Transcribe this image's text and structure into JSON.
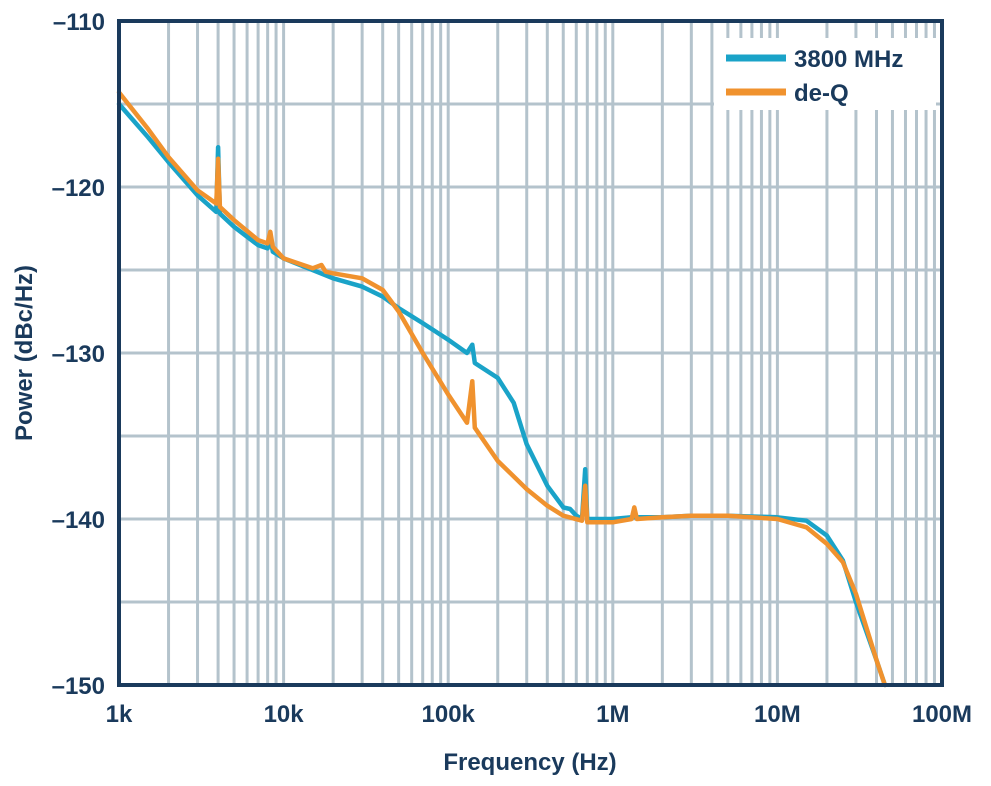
{
  "chart_data": {
    "type": "line",
    "title": "",
    "xlabel": "Frequency (Hz)",
    "ylabel": "Power (dBc/Hz)",
    "x_scale": "log",
    "xlim": [
      1000,
      100000000
    ],
    "ylim": [
      -150,
      -110
    ],
    "x_ticks": [
      {
        "value": 1000,
        "label": "1k"
      },
      {
        "value": 10000,
        "label": "10k"
      },
      {
        "value": 100000,
        "label": "100k"
      },
      {
        "value": 1000000,
        "label": "1M"
      },
      {
        "value": 10000000,
        "label": "10M"
      },
      {
        "value": 100000000,
        "label": "100M"
      }
    ],
    "y_ticks": [
      {
        "value": -110,
        "label": "–110"
      },
      {
        "value": -120,
        "label": "–120"
      },
      {
        "value": -130,
        "label": "–130"
      },
      {
        "value": -140,
        "label": "–140"
      },
      {
        "value": -150,
        "label": "–150"
      }
    ],
    "grid": true,
    "legend_position": "top-right",
    "series": [
      {
        "name": "3800 MHz",
        "color": "#1aa3c8",
        "points": [
          [
            1000,
            -115.0
          ],
          [
            1500,
            -117.0
          ],
          [
            2000,
            -118.5
          ],
          [
            3000,
            -120.5
          ],
          [
            3900,
            -121.5
          ],
          [
            4000,
            -117.6
          ],
          [
            4100,
            -121.6
          ],
          [
            5000,
            -122.4
          ],
          [
            7000,
            -123.5
          ],
          [
            8000,
            -123.7
          ],
          [
            8300,
            -123.0
          ],
          [
            8600,
            -123.9
          ],
          [
            10000,
            -124.3
          ],
          [
            15000,
            -125.0
          ],
          [
            20000,
            -125.5
          ],
          [
            30000,
            -126.0
          ],
          [
            40000,
            -126.6
          ],
          [
            50000,
            -127.3
          ],
          [
            70000,
            -128.2
          ],
          [
            100000,
            -129.2
          ],
          [
            130000,
            -130.0
          ],
          [
            140000,
            -129.5
          ],
          [
            145000,
            -130.6
          ],
          [
            200000,
            -131.5
          ],
          [
            250000,
            -133.0
          ],
          [
            300000,
            -135.5
          ],
          [
            400000,
            -138.0
          ],
          [
            500000,
            -139.3
          ],
          [
            550000,
            -139.4
          ],
          [
            600000,
            -139.8
          ],
          [
            650000,
            -140.0
          ],
          [
            680000,
            -137.0
          ],
          [
            700000,
            -140.0
          ],
          [
            1000000,
            -140.0
          ],
          [
            1300000,
            -139.9
          ],
          [
            2000000,
            -139.9
          ],
          [
            3000000,
            -139.8
          ],
          [
            5000000,
            -139.8
          ],
          [
            10000000,
            -139.9
          ],
          [
            15000000,
            -140.1
          ],
          [
            20000000,
            -141.0
          ],
          [
            25000000,
            -142.5
          ],
          [
            30000000,
            -145.0
          ],
          [
            40000000,
            -148.5
          ],
          [
            45000000,
            -150.0
          ]
        ]
      },
      {
        "name": "de-Q",
        "color": "#f0922e",
        "points": [
          [
            1000,
            -114.3
          ],
          [
            1500,
            -116.5
          ],
          [
            2000,
            -118.2
          ],
          [
            3000,
            -120.2
          ],
          [
            3900,
            -121.0
          ],
          [
            4000,
            -118.3
          ],
          [
            4100,
            -121.2
          ],
          [
            5000,
            -122.0
          ],
          [
            7000,
            -123.2
          ],
          [
            8000,
            -123.4
          ],
          [
            8300,
            -122.7
          ],
          [
            8600,
            -123.6
          ],
          [
            10000,
            -124.3
          ],
          [
            15000,
            -124.9
          ],
          [
            17000,
            -124.7
          ],
          [
            18000,
            -125.1
          ],
          [
            20000,
            -125.2
          ],
          [
            30000,
            -125.5
          ],
          [
            40000,
            -126.2
          ],
          [
            50000,
            -127.5
          ],
          [
            70000,
            -130.0
          ],
          [
            100000,
            -132.5
          ],
          [
            130000,
            -134.2
          ],
          [
            140000,
            -131.7
          ],
          [
            145000,
            -134.5
          ],
          [
            200000,
            -136.5
          ],
          [
            300000,
            -138.2
          ],
          [
            400000,
            -139.2
          ],
          [
            500000,
            -139.8
          ],
          [
            650000,
            -140.1
          ],
          [
            680000,
            -138.0
          ],
          [
            700000,
            -140.2
          ],
          [
            1000000,
            -140.2
          ],
          [
            1300000,
            -140.0
          ],
          [
            1350000,
            -139.3
          ],
          [
            1400000,
            -140.0
          ],
          [
            2000000,
            -139.9
          ],
          [
            3000000,
            -139.8
          ],
          [
            5000000,
            -139.8
          ],
          [
            10000000,
            -140.0
          ],
          [
            15000000,
            -140.5
          ],
          [
            20000000,
            -141.5
          ],
          [
            25000000,
            -142.6
          ],
          [
            30000000,
            -144.5
          ],
          [
            40000000,
            -148.5
          ],
          [
            45000000,
            -150.0
          ]
        ]
      }
    ]
  }
}
